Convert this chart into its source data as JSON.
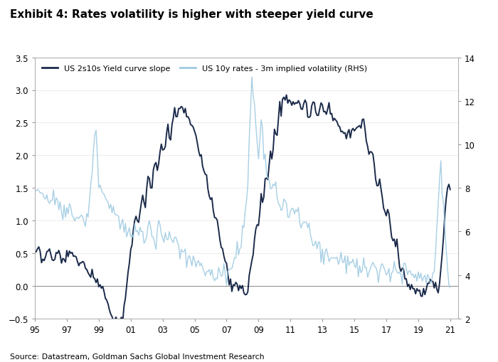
{
  "title": "Exhibit 4: Rates volatility is higher with steeper yield curve",
  "source": "Source: Datastream, Goldman Sachs Global Investment Research",
  "legend1": "US 2s10s Yield curve slope",
  "legend2": "US 10y rates - 3m implied volatility (RHS)",
  "color1": "#1b2a4a",
  "color2": "#9ecae1",
  "ylim_left": [
    -0.5,
    3.5
  ],
  "ylim_right": [
    2,
    14
  ],
  "yticks_left": [
    -0.5,
    0,
    0.5,
    1.0,
    1.5,
    2.0,
    2.5,
    3.0,
    3.5
  ],
  "yticks_right": [
    2,
    4,
    6,
    8,
    10,
    12,
    14
  ],
  "xtick_labels": [
    "95",
    "97",
    "99",
    "01",
    "03",
    "05",
    "07",
    "09",
    "11",
    "13",
    "15",
    "17",
    "19",
    "21"
  ]
}
